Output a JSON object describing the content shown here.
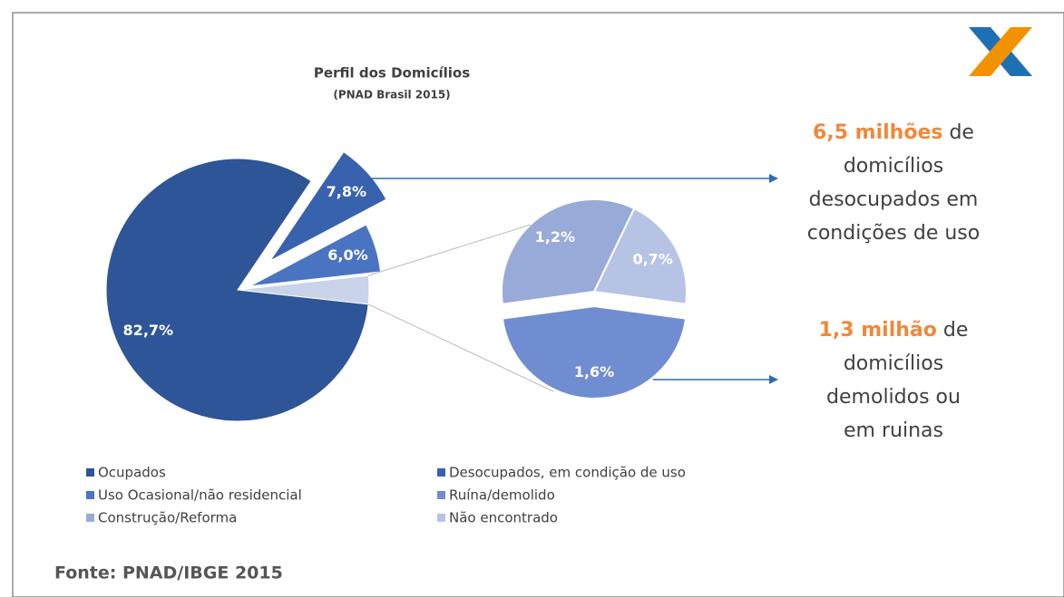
{
  "chart_data": {
    "type": "pie_of_pie",
    "title": "Perfil dos Domicílios",
    "subtitle": "(PNAD Brasil 2015)",
    "categories": [
      "Ocupados",
      "Desocupados, em condição de uso",
      "Uso Ocasional/não residencial",
      "Ruína/demolido",
      "Construção/Reforma",
      "Não encontrado"
    ],
    "values": [
      82.7,
      7.8,
      6.0,
      1.6,
      1.2,
      0.7
    ],
    "value_labels": [
      "82,7%",
      "7,8%",
      "6,0%",
      "1,6%",
      "1,2%",
      "0,7%"
    ],
    "colors": [
      "#2e5597",
      "#3862ad",
      "#4a74c2",
      "#6f8dd0",
      "#98aad8",
      "#b7c3e4"
    ],
    "secondary_from": 3,
    "annotations": [
      {
        "highlight": "6,5 milhões",
        "rest": "de",
        "lines": [
          "domicílios",
          "desocupados em",
          "condições de uso"
        ]
      },
      {
        "highlight": "1,3 milhão",
        "rest": "de",
        "lines": [
          "domicílios",
          "demolidos ou",
          "em ruinas"
        ]
      }
    ],
    "source": "Fonte: PNAD/IBGE 2015"
  }
}
